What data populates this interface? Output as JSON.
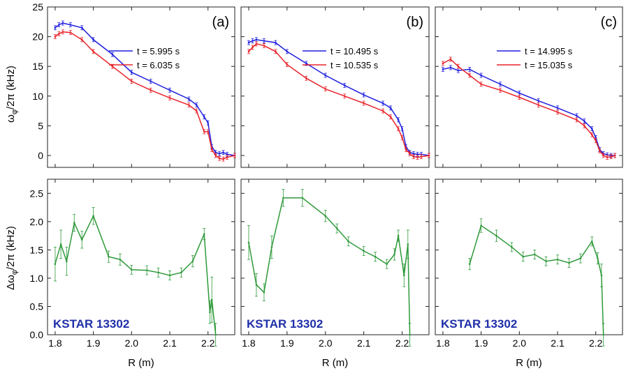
{
  "colors": {
    "blue": "#1f1fe0",
    "red": "#e8232a",
    "green": "#2e9a3a",
    "kstar": "#1f2fa8"
  },
  "figure": {
    "xlabel": "R (m)",
    "top_ylabel_main": "ω",
    "top_ylabel_sub": "φ",
    "top_ylabel_rest": "/2π (kHz)",
    "bottom_ylabel_main": "Δω",
    "bottom_ylabel_sub": "φ",
    "bottom_ylabel_rest": "/2π (kHz)",
    "shot_label": "KSTAR 13302"
  },
  "chart_data": [
    {
      "type": "line",
      "panel": "(a)",
      "row": "top",
      "xlim": [
        1.78,
        2.27
      ],
      "ylim": [
        -2,
        25
      ],
      "xticks": [
        "1.8",
        "1.9",
        "2.0",
        "2.1",
        "2.2"
      ],
      "yticks": [
        "0",
        "5",
        "10",
        "15",
        "20",
        "25"
      ],
      "legend_position": "top-right",
      "series": [
        {
          "name": "t = 5.995 s",
          "color": "blue",
          "x": [
            1.8,
            1.81,
            1.82,
            1.84,
            1.87,
            1.9,
            1.95,
            2.0,
            2.05,
            2.1,
            2.15,
            2.17,
            2.19,
            2.2,
            2.21,
            2.22,
            2.23,
            2.24,
            2.25,
            2.27
          ],
          "y": [
            21.5,
            22.0,
            22.3,
            22.0,
            21.5,
            19.5,
            17.0,
            14.0,
            12.5,
            11.0,
            9.5,
            8.5,
            6.5,
            5.5,
            1.5,
            0.5,
            0.3,
            0.5,
            0.2,
            0.0
          ]
        },
        {
          "name": "t = 6.035 s",
          "color": "red",
          "x": [
            1.8,
            1.81,
            1.82,
            1.84,
            1.87,
            1.9,
            1.95,
            2.0,
            2.05,
            2.1,
            2.15,
            2.17,
            2.19,
            2.2,
            2.21,
            2.22,
            2.23,
            2.24,
            2.25,
            2.27
          ],
          "y": [
            20.0,
            20.5,
            20.8,
            20.7,
            19.5,
            17.5,
            15.0,
            12.5,
            11.0,
            9.7,
            8.5,
            7.5,
            4.0,
            4.0,
            1.0,
            0.0,
            -0.5,
            -0.6,
            -0.3,
            0.0
          ]
        }
      ]
    },
    {
      "type": "line",
      "panel": "(b)",
      "row": "top",
      "xlim": [
        1.78,
        2.27
      ],
      "ylim": [
        -2,
        25
      ],
      "xticks": [
        "1.8",
        "1.9",
        "2.0",
        "2.1",
        "2.2"
      ],
      "legend_position": "top-right",
      "series": [
        {
          "name": "t = 10.495 s",
          "color": "blue",
          "x": [
            1.8,
            1.81,
            1.82,
            1.84,
            1.87,
            1.9,
            1.95,
            2.0,
            2.05,
            2.1,
            2.15,
            2.17,
            2.19,
            2.2,
            2.21,
            2.22,
            2.23,
            2.24,
            2.25,
            2.27
          ],
          "y": [
            19.0,
            19.3,
            19.5,
            19.3,
            19.0,
            17.5,
            15.5,
            13.5,
            11.8,
            10.2,
            8.8,
            8.0,
            6.0,
            4.5,
            1.5,
            0.5,
            0.3,
            0.2,
            0.2,
            0.0
          ]
        },
        {
          "name": "t = 10.535 s",
          "color": "red",
          "x": [
            1.8,
            1.81,
            1.82,
            1.84,
            1.87,
            1.9,
            1.95,
            2.0,
            2.05,
            2.1,
            2.15,
            2.17,
            2.19,
            2.2,
            2.21,
            2.22,
            2.23,
            2.24,
            2.25,
            2.27
          ],
          "y": [
            17.5,
            18.2,
            18.8,
            18.5,
            17.5,
            15.3,
            13.0,
            11.2,
            10.0,
            8.8,
            7.5,
            6.5,
            4.5,
            3.0,
            1.0,
            0.3,
            -0.2,
            -0.3,
            -0.2,
            0.0
          ]
        }
      ]
    },
    {
      "type": "line",
      "panel": "(c)",
      "row": "top",
      "xlim": [
        1.78,
        2.27
      ],
      "ylim": [
        -2,
        25
      ],
      "xticks": [
        "1.8",
        "1.9",
        "2.0",
        "2.1",
        "2.2"
      ],
      "legend_position": "top-right",
      "series": [
        {
          "name": "t = 14.995 s",
          "color": "blue",
          "x": [
            1.8,
            1.82,
            1.84,
            1.87,
            1.9,
            1.95,
            2.0,
            2.05,
            2.1,
            2.15,
            2.17,
            2.19,
            2.2,
            2.21,
            2.22,
            2.23,
            2.24,
            2.25
          ],
          "y": [
            14.5,
            14.8,
            14.3,
            14.5,
            13.5,
            12.0,
            10.5,
            9.2,
            8.0,
            6.7,
            5.8,
            4.5,
            3.0,
            1.0,
            0.3,
            0.1,
            0.0,
            0.0
          ]
        },
        {
          "name": "t = 15.035 s",
          "color": "red",
          "x": [
            1.8,
            1.82,
            1.84,
            1.87,
            1.9,
            1.95,
            2.0,
            2.05,
            2.1,
            2.15,
            2.17,
            2.19,
            2.2,
            2.21,
            2.22,
            2.23,
            2.24,
            2.25
          ],
          "y": [
            15.5,
            16.2,
            15.0,
            13.5,
            12.0,
            11.0,
            9.8,
            8.5,
            7.3,
            6.0,
            5.0,
            3.5,
            2.5,
            0.8,
            0.0,
            -0.3,
            -0.2,
            0.0
          ]
        }
      ]
    },
    {
      "type": "line",
      "panel": "",
      "row": "bottom",
      "xlim": [
        1.78,
        2.27
      ],
      "ylim": [
        0,
        2.75
      ],
      "xticks": [
        "1.8",
        "1.9",
        "2.0",
        "2.1",
        "2.2"
      ],
      "yticks": [
        "0.0",
        "0.5",
        "1.0",
        "1.5",
        "2.0",
        "2.5"
      ],
      "xlabel": "R (m)",
      "series": [
        {
          "color": "green",
          "x": [
            1.8,
            1.815,
            1.83,
            1.85,
            1.87,
            1.9,
            1.94,
            1.97,
            2.0,
            2.04,
            2.07,
            2.1,
            2.13,
            2.16,
            2.19,
            2.205,
            2.21,
            2.22
          ],
          "y": [
            1.25,
            1.6,
            1.3,
            1.98,
            1.68,
            2.1,
            1.38,
            1.33,
            1.15,
            1.14,
            1.1,
            1.05,
            1.1,
            1.3,
            1.78,
            0.4,
            0.62,
            0.0
          ],
          "err": [
            0.3,
            0.25,
            0.25,
            0.15,
            0.15,
            0.15,
            0.1,
            0.1,
            0.08,
            0.08,
            0.08,
            0.08,
            0.08,
            0.1,
            0.1,
            0.2,
            0.4,
            0.2
          ]
        }
      ]
    },
    {
      "type": "line",
      "panel": "",
      "row": "bottom",
      "xlim": [
        1.78,
        2.27
      ],
      "ylim": [
        0,
        2.75
      ],
      "xticks": [
        "1.8",
        "1.9",
        "2.0",
        "2.1",
        "2.2"
      ],
      "xlabel": "R (m)",
      "series": [
        {
          "color": "green",
          "x": [
            1.8,
            1.82,
            1.84,
            1.86,
            1.89,
            1.94,
            2.0,
            2.03,
            2.06,
            2.1,
            2.13,
            2.16,
            2.18,
            2.19,
            2.205,
            2.215,
            2.22
          ],
          "y": [
            1.63,
            0.88,
            0.75,
            1.55,
            2.42,
            2.42,
            2.1,
            1.88,
            1.65,
            1.48,
            1.38,
            1.25,
            1.42,
            1.75,
            1.05,
            1.6,
            0.0
          ],
          "err": [
            0.3,
            0.2,
            0.15,
            0.2,
            0.15,
            0.15,
            0.1,
            0.08,
            0.08,
            0.08,
            0.08,
            0.08,
            0.1,
            0.1,
            0.2,
            0.25,
            0.2
          ]
        }
      ]
    },
    {
      "type": "line",
      "panel": "",
      "row": "bottom",
      "xlim": [
        1.78,
        2.27
      ],
      "ylim": [
        0,
        2.75
      ],
      "xticks": [
        "1.8",
        "1.9",
        "2.0",
        "2.1",
        "2.2"
      ],
      "xlabel": "R (m)",
      "series": [
        {
          "color": "green",
          "x": [
            1.87,
            1.9,
            1.94,
            1.98,
            2.01,
            2.04,
            2.07,
            2.1,
            2.13,
            2.16,
            2.19,
            2.205,
            2.215,
            2.22
          ],
          "y": [
            1.25,
            1.93,
            1.75,
            1.55,
            1.38,
            1.42,
            1.3,
            1.33,
            1.27,
            1.35,
            1.65,
            1.35,
            1.05,
            0.0
          ],
          "err": [
            0.1,
            0.12,
            0.1,
            0.08,
            0.08,
            0.08,
            0.08,
            0.08,
            0.08,
            0.08,
            0.08,
            0.1,
            0.2,
            0.2
          ]
        }
      ]
    }
  ]
}
